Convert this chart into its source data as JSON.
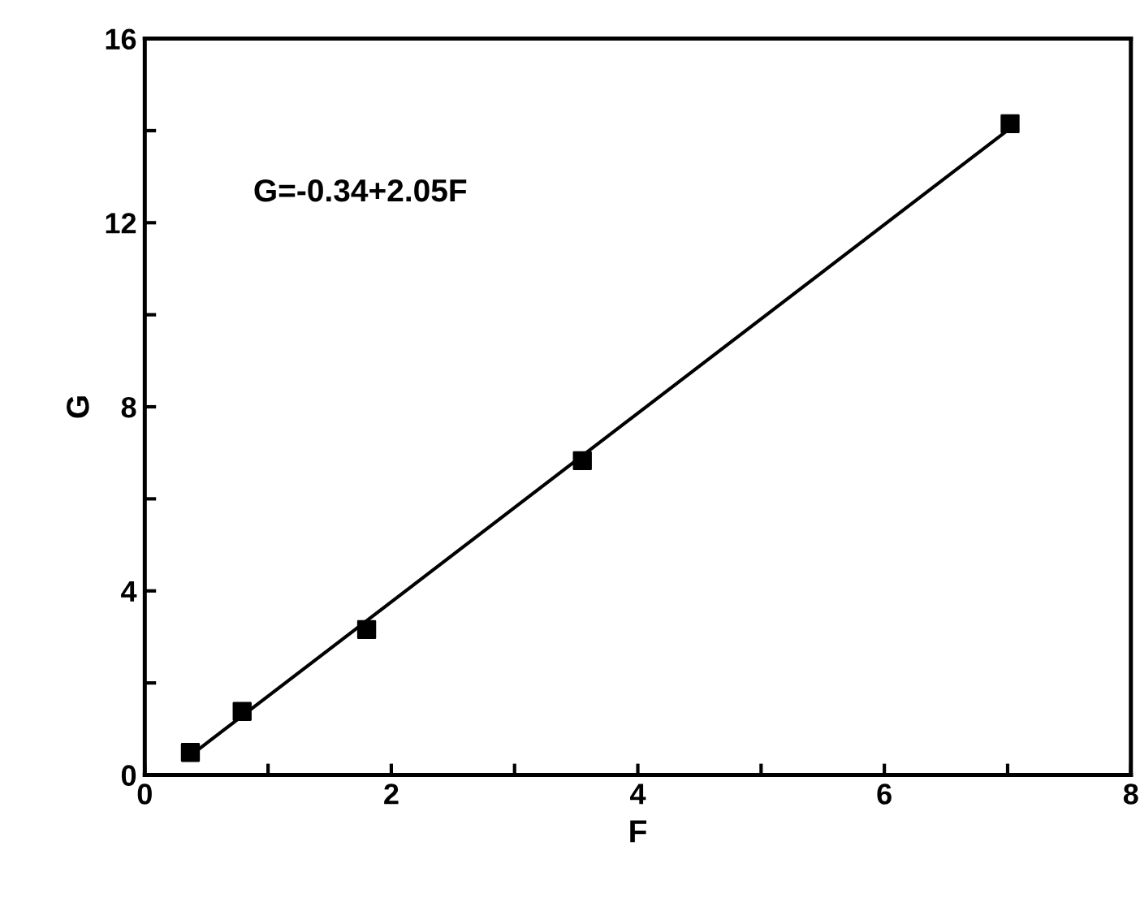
{
  "chart_data": {
    "type": "scatter",
    "xlabel": "F",
    "ylabel": "G",
    "xlim": [
      0,
      8
    ],
    "ylim": [
      0,
      16
    ],
    "xticks": [
      0,
      {
        "value": 1,
        "label": null
      },
      2,
      {
        "value": 3,
        "label": null
      },
      4,
      {
        "value": 5,
        "label": null
      },
      6,
      {
        "value": 7,
        "label": null
      },
      8
    ],
    "yticks": [
      0,
      {
        "value": 2,
        "label": null
      },
      4,
      {
        "value": 6,
        "label": null
      },
      8,
      {
        "value": 10,
        "label": null
      },
      12,
      {
        "value": 14,
        "label": null
      },
      16
    ],
    "grid": false,
    "legend": false,
    "annotations": [
      "G=-0.34+2.05F"
    ],
    "series": [
      {
        "marker": "square",
        "color": "#000000",
        "x": [
          0.37,
          0.79,
          1.8,
          3.55,
          7.02
        ],
        "values": [
          0.49,
          1.38,
          3.16,
          6.83,
          14.15
        ]
      },
      {
        "type": "line",
        "marker": "none",
        "color": "#000000",
        "x": [
          0.37,
          7.02
        ],
        "values": [
          0.42,
          14.05
        ]
      }
    ]
  }
}
